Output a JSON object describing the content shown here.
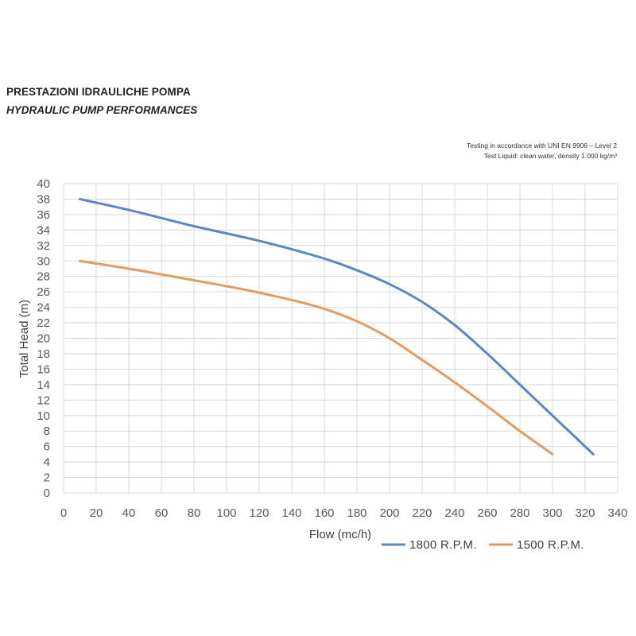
{
  "header": {
    "title_it": "PRESTAZIONI IDRAULICHE POMPA",
    "title_en": "HYDRAULIC PUMP PERFORMANCES",
    "note_line1": "Testing in accordance with UNI EN 9906 – Level 2",
    "note_line2": "Test Liquid: clean water, density 1.000 kg/m³"
  },
  "chart_data": {
    "type": "line",
    "xlabel": "Flow (mc/h)",
    "ylabel": "Total Head (m)",
    "xlim": [
      0,
      340
    ],
    "ylim": [
      0,
      40
    ],
    "xticks": [
      0,
      20,
      40,
      60,
      80,
      100,
      120,
      140,
      160,
      180,
      200,
      220,
      240,
      260,
      280,
      300,
      320,
      340
    ],
    "yticks": [
      0,
      2,
      4,
      6,
      8,
      10,
      12,
      14,
      16,
      18,
      20,
      22,
      24,
      26,
      28,
      30,
      32,
      34,
      36,
      38,
      40
    ],
    "grid": true,
    "legend_position": "bottom-right",
    "series": [
      {
        "name": "1800 R.P.M.",
        "color": "#5B87C4",
        "x": [
          10,
          40,
          80,
          120,
          160,
          180,
          200,
          220,
          240,
          260,
          280,
          300,
          325
        ],
        "y": [
          38,
          36.6,
          34.5,
          32.6,
          30.3,
          28.8,
          27,
          24.7,
          21.7,
          18,
          14,
          10,
          5
        ]
      },
      {
        "name": "1500 R.P.M.",
        "color": "#E69A5E",
        "x": [
          10,
          40,
          80,
          120,
          160,
          180,
          200,
          220,
          240,
          260,
          280,
          300
        ],
        "y": [
          30,
          29,
          27.5,
          25.9,
          23.8,
          22.2,
          20,
          17.2,
          14.3,
          11.2,
          8,
          5
        ]
      }
    ]
  }
}
